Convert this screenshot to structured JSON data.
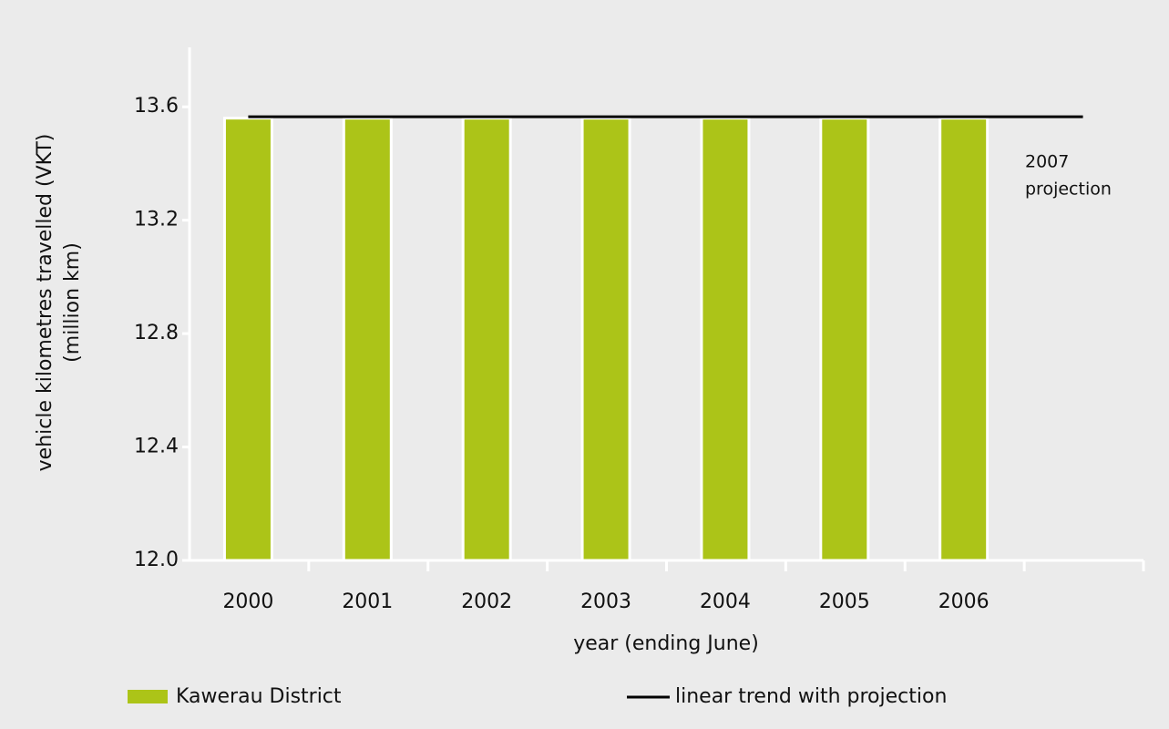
{
  "chart_data": {
    "type": "bar",
    "y_label": [
      "vehicle kilometres travelled (VKT)",
      "(million km)"
    ],
    "x_label": "year (ending June)",
    "annotation": [
      "2007",
      "projection"
    ],
    "categories": [
      "2000",
      "2001",
      "2002",
      "2003",
      "2004",
      "2005",
      "2006",
      null
    ],
    "series": [
      {
        "name": "Kawerau District",
        "type": "bar",
        "color": "#acc418",
        "values": [
          13.56,
          13.56,
          13.56,
          13.56,
          13.56,
          13.56,
          13.56,
          null
        ]
      },
      {
        "name": "linear trend with projection",
        "type": "line",
        "color": "#000000",
        "values": [
          13.565,
          13.565,
          13.565,
          13.565,
          13.565,
          13.565,
          13.565,
          13.565
        ]
      }
    ],
    "ylim": [
      12.0,
      13.8
    ],
    "yticks": [
      {
        "value": 12.0,
        "label": "12.0"
      },
      12.4,
      12.8,
      13.2,
      13.6
    ],
    "grid": false
  }
}
